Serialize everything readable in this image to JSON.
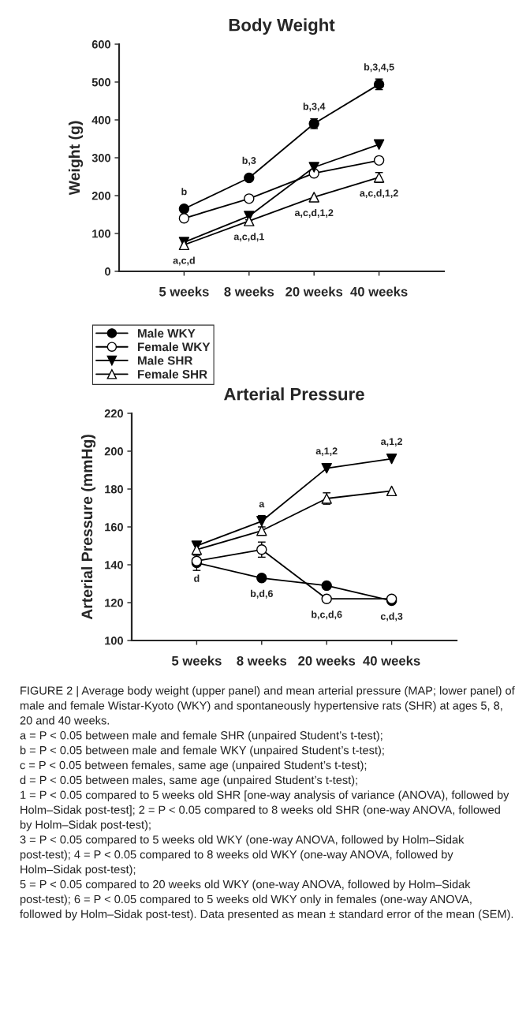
{
  "chart_data": [
    {
      "type": "line",
      "title": "Body Weight",
      "ylabel": "Weight (g)",
      "categories": [
        "5 weeks",
        "8 weeks",
        "20 weeks",
        "40 weeks"
      ],
      "ylim": [
        0,
        600
      ],
      "yticks": [
        0,
        100,
        200,
        300,
        400,
        500,
        600
      ],
      "grid": false,
      "legend": "bottom left",
      "series": [
        {
          "name": "Male WKY",
          "color": "#000000",
          "marker": "circle",
          "values": [
            165,
            247,
            390,
            494
          ],
          "errors": [
            null,
            null,
            13,
            14
          ]
        },
        {
          "name": "Female WKY",
          "color": "#ffffff",
          "marker": "circle",
          "values": [
            140,
            192,
            259,
            293
          ]
        },
        {
          "name": "Male SHR",
          "color": "#000000",
          "marker": "triangle_down",
          "values": [
            77,
            146,
            275,
            335
          ],
          "errors": [
            null,
            10,
            null,
            null
          ]
        },
        {
          "name": "Female SHR",
          "color": "#ffffff",
          "marker": "triangle",
          "values": [
            70,
            133,
            196,
            248
          ],
          "errors": [
            null,
            null,
            null,
            13
          ]
        }
      ],
      "annotations": [
        {
          "text": "b",
          "x": "5 weeks",
          "y": 165
        },
        {
          "text": "b,3",
          "x": "8 weeks",
          "y": 247
        },
        {
          "text": "b,3,4",
          "x": "20 weeks",
          "y": 390
        },
        {
          "text": "b,3,4,5",
          "x": "40 weeks",
          "y": 494
        },
        {
          "text": "a,c,d",
          "x": "5 weeks",
          "y": 70
        },
        {
          "text": "a,c,d,1",
          "x": "8 weeks",
          "y": 133
        },
        {
          "text": "a,c,d,1,2",
          "x": "20 weeks",
          "y": 196
        },
        {
          "text": "a,c,d,1,2",
          "x": "40 weeks",
          "y": 248
        }
      ]
    },
    {
      "type": "line",
      "title": "Arterial Pressure",
      "ylabel": "Arterial Pressure (mmHg)",
      "categories": [
        "5 weeks",
        "8 weeks",
        "20 weeks",
        "40 weeks"
      ],
      "ylim": [
        100,
        220
      ],
      "yticks": [
        100,
        120,
        140,
        160,
        180,
        200,
        220
      ],
      "grid": false,
      "series": [
        {
          "color": "#000000",
          "marker": "circle",
          "values": [
            141,
            133,
            129,
            121
          ],
          "errors": [
            4,
            null,
            null,
            null
          ]
        },
        {
          "color": "#ffffff",
          "marker": "circle",
          "values": [
            142,
            148,
            122,
            122
          ],
          "errors": [
            null,
            4,
            null,
            null
          ]
        },
        {
          "color": "#000000",
          "marker": "triangle_down",
          "values": [
            150,
            163,
            191,
            196
          ],
          "errors": [
            null,
            3,
            null,
            null
          ]
        },
        {
          "color": "#ffffff",
          "marker": "triangle",
          "values": [
            148,
            158,
            175,
            179
          ],
          "errors": [
            null,
            null,
            3,
            null
          ]
        }
      ],
      "annotations": [
        {
          "text": "d",
          "x": "5 weeks",
          "y": 141
        },
        {
          "text": "a",
          "x": "8 weeks",
          "y": 163
        },
        {
          "text": "a,1,2",
          "x": "20 weeks",
          "y": 191
        },
        {
          "text": "a,1,2",
          "x": "40 weeks",
          "y": 196
        },
        {
          "text": "b,d,6",
          "x": "8 weeks",
          "y": 133
        },
        {
          "text": "b,c,d,6",
          "x": "20 weeks",
          "y": 122
        },
        {
          "text": "c,d,3",
          "x": "40 weeks",
          "y": 121
        },
        "FIGURE 2 | Average body weight (upper panel) and mean arterial pressure (MAP; lower panel) of male and female Wistar-Kyoto (WKY) and spontaneously hypertensive rats (SHR) at ages 5, 8, 20 and 40 weeks.",
        "a = P < 0.05 between male and female SHR (unpaired Student’s t-test);",
        "b = P < 0.05 between male and female WKY (unpaired Student’s t-test);",
        "c = P < 0.05 between females, same age (unpaired Student’s t-test);",
        "d = P < 0.05 between males, same age (unpaired Student’s t-test);",
        "1 = P < 0.05 compared to 5 weeks old SHR [one-way analysis of variance (ANOVA), followed by Holm–Sidak post-test]; 2 = P < 0.05 compared to 8 weeks old SHR (one-way ANOVA, followed by Holm–Sidak post-test);",
        "3 = P < 0.05 compared to 5 weeks old WKY (one-way ANOVA, followed by Holm–Sidak post-test); 4 = P < 0.05 compared to 8 weeks old WKY (one-way ANOVA, followed by Holm–Sidak post-test);",
        "5 = P < 0.05 compared to 20 weeks old WKY (one-way ANOVA, followed by Holm–Sidak post-test); 6 = P < 0.05 compared to 5 weeks old WKY only in females (one-way ANOVA, followed by Holm–Sidak post-test). Data presented as mean ± standard error of the mean (SEM)."
      ]
    }
  ]
}
